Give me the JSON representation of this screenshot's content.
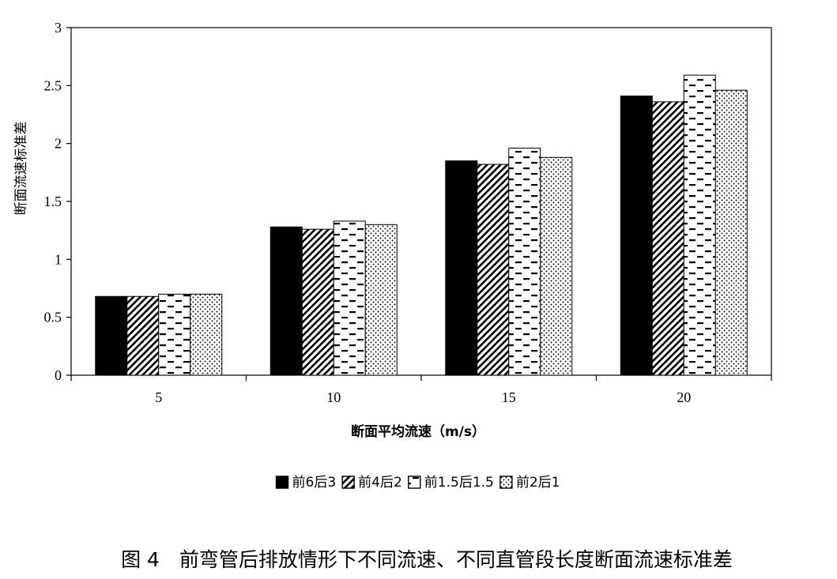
{
  "chart_data": {
    "type": "bar",
    "categories": [
      "5",
      "10",
      "15",
      "20"
    ],
    "series": [
      {
        "name": "前6后3",
        "pattern": "solid",
        "values": [
          0.68,
          1.28,
          1.85,
          2.41
        ]
      },
      {
        "name": "前4后2",
        "pattern": "diagonal",
        "values": [
          0.68,
          1.26,
          1.82,
          2.36
        ]
      },
      {
        "name": "前1.5后1.5",
        "pattern": "dashes",
        "values": [
          0.7,
          1.33,
          1.96,
          2.59
        ]
      },
      {
        "name": "前2后1",
        "pattern": "dots",
        "values": [
          0.7,
          1.3,
          1.88,
          2.46
        ]
      }
    ],
    "xlabel": "断面平均流速（m/s）",
    "ylabel": "断面流速标准差",
    "ylim": [
      0,
      3
    ],
    "yticks": [
      "0",
      "0.5",
      "1",
      "1.5",
      "2",
      "2.5",
      "3"
    ],
    "grid": false,
    "legend_position": "bottom",
    "caption": "图 4　前弯管后排放情形下不同流速、不同直管段长度断面流速标准差",
    "colors": {
      "bar_fill": "#000000",
      "background": "#ffffff"
    }
  }
}
